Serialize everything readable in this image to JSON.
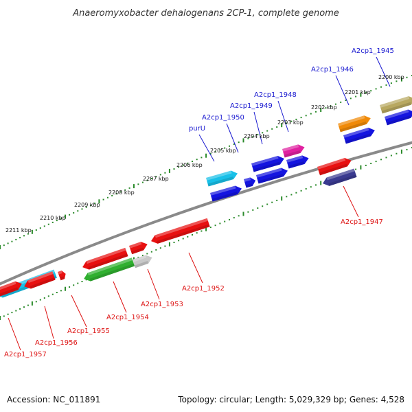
{
  "title": "Anaeromyxobacter dehalogenans 2CP-1, complete genome",
  "footer": {
    "accession": "Accession: NC_011891",
    "summary": "Topology: circular; Length: 5,029,329 bp; Genes: 4,528"
  },
  "colors": {
    "backbone": "#8a8a8a",
    "tick": "#2a8a2a",
    "forward_label": "#1a1ad0",
    "reverse_label": "#dd1111"
  },
  "ticks": [
    "2200 kbp",
    "2201 kbp",
    "2202 kbp",
    "2203 kbp",
    "2204 kbp",
    "2205 kbp",
    "2206 kbp",
    "2207 kbp",
    "2208 kbp",
    "2209 kbp",
    "2210 kbp",
    "2211 kbp"
  ],
  "genes": {
    "forward": [
      "A2cp1_1945",
      "A2cp1_1946",
      "A2cp1_1948",
      "A2cp1_1949",
      "A2cp1_1950",
      "purU"
    ],
    "reverse": [
      "A2cp1_1947",
      "A2cp1_1952",
      "A2cp1_1953",
      "A2cp1_1954",
      "A2cp1_1955",
      "A2cp1_1956",
      "A2cp1_1957"
    ]
  },
  "gene_colors": {
    "red": "#e81010",
    "blue": "#1414e0",
    "cyan": "#18c0e8",
    "orange": "#f08a08",
    "olive": "#b8a860",
    "magenta": "#e020a0",
    "green": "#30b030",
    "gray": "#c8c8c8",
    "navy": "#3a3a90"
  }
}
